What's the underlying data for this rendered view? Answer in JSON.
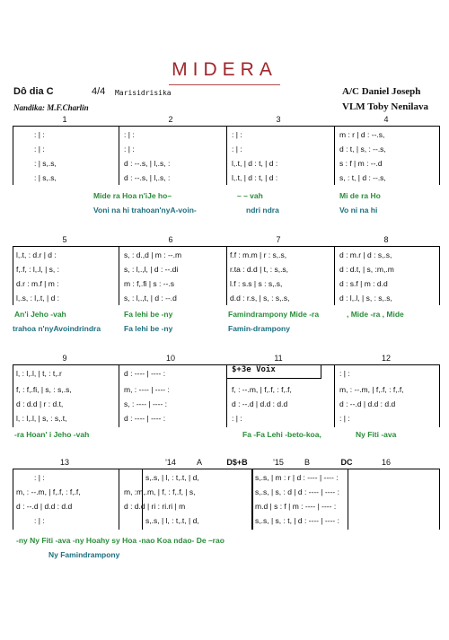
{
  "header": {
    "title": "MIDERA",
    "key": "Dô dia C",
    "time": "4/4",
    "subtitle": "Marisidrisika",
    "composer": "Nandika: M.F.Charlin",
    "arranger": "A/C Daniel Joseph",
    "vlm": "VLM Toby Nenilava"
  },
  "systems": [
    {
      "bar_numbers": [
        "1",
        "2",
        "3",
        "4"
      ],
      "measures": [
        {
          "rows": [
            ":        |        :",
            ":        |        :",
            ":        |   s,.s,",
            ":        |   s,.s,"
          ]
        },
        {
          "rows": [
            ":         |         :",
            ":         |         :",
            "d  : --.s, | l,.s, :",
            "d  : --.s, | l,.s, :"
          ]
        },
        {
          "rows": [
            ":         |         :",
            ":         |         :",
            "l,.t,  | d  : t,  | d :",
            "l,.t,  | d  : t,  | d :"
          ]
        },
        {
          "rows": [
            "m  :  r  |  d  :  --.s,",
            "d  :  t,  |  s,  :  --.s,",
            "s  :  f  |  m  :  --.d",
            "s,  :  t,  |  d  :  --.s,"
          ]
        }
      ],
      "lyrics": [
        {
          "cells": [
            "",
            "Mide  ra   Hoa  n'iJe  ho–",
            "–    –   vah",
            "Mi   de   ra   Ho"
          ]
        },
        {
          "cells": [
            "",
            "Voni  na    hi  trahoan'nyA-voin-",
            "ndri  ndra",
            "Vo    ni    na    hi"
          ]
        }
      ]
    },
    {
      "bar_numbers": [
        "5",
        "6",
        "7",
        "8"
      ],
      "measures": [
        {
          "rows": [
            "l,.t,  :  d.r  |  d  :",
            "f,.f,  :  l,.l,  |  s,  :",
            "d.r  :  m.f  |  m  :",
            "l,.s,  :  l,.t,  |  d  :"
          ]
        },
        {
          "rows": [
            "s,  :  d.,d  |  m  : --.m",
            "s,  :  l,.,l,  |  d  : --.di",
            "m  :  f,.fi  |  s  :  --.s",
            "s,  :  l,.,t,  |  d  : --.d"
          ]
        },
        {
          "rows": [
            "f.f  :  m.m  |  r  :  s,.s,",
            "r.ta  :  d.d  |  t,  :  s,.s,",
            "l.f  :  s.s  |  s  :  s,.s,",
            "d.d  :  r.s,  |  s,  :  s,.s,"
          ]
        },
        {
          "rows": [
            "d  :  m.r  |  d  :  s,.s,",
            "d  :  d.t,  |  s,  :m,.m",
            "d  :  s.f  |  m  :  d.d",
            "d  :  l,.l,  |  s,  :  s,.s,"
          ]
        }
      ],
      "lyrics": [
        {
          "cells": [
            "An'i  Jeho  -vah",
            "Fa    lehi    be    -ny",
            "Famindrampony  Mide  -ra",
            ", Mide  -ra  , Mide"
          ]
        },
        {
          "cells": [
            "trahoa n'nyAvoindrindra",
            "Fa    lehi    be    -ny",
            "Famin-drampony",
            ""
          ]
        }
      ]
    },
    {
      "bar_numbers": [
        "9",
        "10",
        "11",
        "12"
      ],
      "annotation": "$+3e Voix",
      "measures": [
        {
          "rows": [
            "l,  :  l,.l,  |  t,  :  t,.r",
            "f,  :  f,.fi,  |  s,  :  s,.s,",
            "d  :  d.d  |  r  :  d.t,",
            "l,  :  l,.l,  |  s,  :  s,.t,"
          ]
        },
        {
          "rows": [
            "d  :  ----  |  ----  :",
            "m,  :  ----  |  ----  :",
            "s,  :  ----  |  ----  :",
            "d  :  ----  |  ----  :"
          ]
        },
        {
          "rows": [
            ":         |         :",
            "f,  : --.m,  |  f,.f,  : f,.f,",
            "d  : --.d  |  d.d  : d.d",
            ":         |         :"
          ]
        },
        {
          "rows": [
            ":         |         :",
            "m,  : --.m,  |  f,.f,  : f,.f,",
            "d  : --.d  |  d.d  : d.d",
            ":         |         :"
          ]
        }
      ],
      "lyrics": [
        {
          "cells": [
            "-ra  Hoan'   i    Jeho  -vah",
            "",
            "Fa    -Fa  Lehi  -beto-koa,",
            "Ny    Fiti    -ava"
          ]
        }
      ]
    },
    {
      "bar_numbers": [
        "13",
        "'14",
        "A",
        "D$+B",
        "'15",
        "B",
        "DC",
        "16"
      ],
      "measures": [
        {
          "rows": [
            ":         |         :",
            "m,  : --.m,  |  f,.f,  : f,.f,",
            "d  : --.d  |  d.d  : d.d",
            ":         |         :"
          ]
        },
        {
          "rows": [
            "s,.s,  |  l,  :  t,.t,  |  d,",
            "m,  :m,.m,  |  f,  :  f,.f,  |  s,",
            "d  :  d.d  |  ri  :  ri.ri  |  m",
            "s,.s,  |  l,  :  t,.t,  |  d,"
          ]
        },
        {
          "rows": [
            "s,.s,  |  m  :  r  |  d  :  ----  |  ----  :",
            "s,.s,  |  s,  :  d  |  d  :  ----  |  ----  :",
            "m.d  |  s  :  f  |  m  :  ----  |  ----  :",
            "s,.s,  |  s,  :  t,  |  d  :  ----  |  ----  :"
          ]
        }
      ],
      "lyrics": [
        {
          "cells": [
            "-ny    Ny  Fiti   -ava  -ny  Hoahy  sy   Hoa  -nao  Koa  ndao-  De  –rao"
          ]
        },
        {
          "cells": [
            "Ny Famindrampony"
          ]
        }
      ]
    }
  ]
}
